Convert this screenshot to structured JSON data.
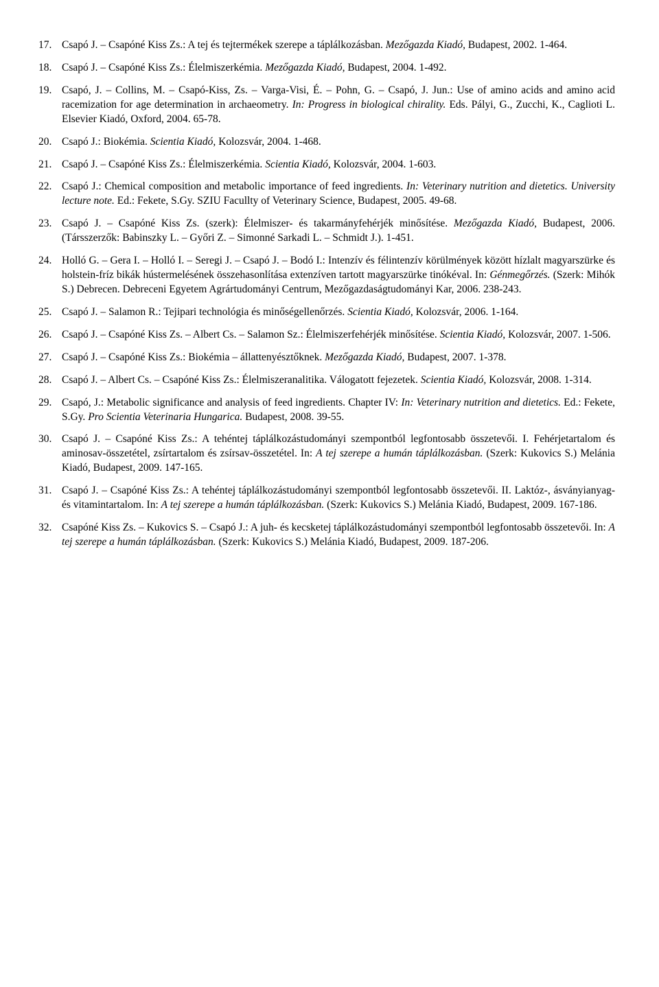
{
  "entries": [
    {
      "n": "17.",
      "parts": [
        {
          "t": "Csapó J. – Csapóné Kiss Zs.: A tej és tejtermékek szerepe a táplálkozásban. "
        },
        {
          "t": "Mezőgazda Kiadó, ",
          "i": true
        },
        {
          "t": "Budapest, 2002. 1-464."
        }
      ]
    },
    {
      "n": "18.",
      "parts": [
        {
          "t": "Csapó J. – Csapóné Kiss Zs.: Élelmiszerkémia. "
        },
        {
          "t": "Mezőgazda Kiadó, ",
          "i": true
        },
        {
          "t": "Budapest, 2004. 1-492."
        }
      ]
    },
    {
      "n": "19.",
      "parts": [
        {
          "t": "Csapó, J. – Collins, M. – Csapó-Kiss, Zs. – Varga-Visi, É. – Pohn, G. – Csapó, J. Jun.: Use of amino acids and amino acid racemization for age determination in archaeometry. "
        },
        {
          "t": "In: Progress in biological chirality. ",
          "i": true
        },
        {
          "t": "Eds. Pályi, G., Zucchi, K., Caglioti L. Elsevier Kiadó, Oxford, 2004. 65-78."
        }
      ]
    },
    {
      "n": "20.",
      "parts": [
        {
          "t": "Csapó J.: Biokémia. "
        },
        {
          "t": "Scientia Kiadó, ",
          "i": true
        },
        {
          "t": "Kolozsvár, 2004. 1-468."
        }
      ]
    },
    {
      "n": "21.",
      "parts": [
        {
          "t": "Csapó J. – Csapóné Kiss Zs.: Élelmiszerkémia. "
        },
        {
          "t": "Scientia Kiadó, ",
          "i": true
        },
        {
          "t": "Kolozsvár, 2004. 1-603."
        }
      ]
    },
    {
      "n": "22.",
      "parts": [
        {
          "t": "Csapó J.: Chemical composition and metabolic importance of feed ingredients. "
        },
        {
          "t": "In: Veterinary nutrition and dietetics. University lecture note. ",
          "i": true
        },
        {
          "t": "Ed.: Fekete, S.Gy. SZIU Facullty of Veterinary Science, Budapest, 2005. 49-68."
        }
      ]
    },
    {
      "n": "23.",
      "parts": [
        {
          "t": "Csapó J. – Csapóné Kiss Zs. (szerk): Élelmiszer- és takarmányfehérjék minősítése. "
        },
        {
          "t": "Mezőgazda Kiadó, ",
          "i": true
        },
        {
          "t": "Budapest, 2006. (Társszerzők: Babinszky L. – Győri Z. – Simonné Sarkadi L. – Schmidt J.). 1-451."
        }
      ]
    },
    {
      "n": "24.",
      "parts": [
        {
          "t": "Holló G. – Gera I. – Holló I. – Seregi J. – Csapó J. – Bodó I.: Intenzív és félintenzív körülmények között hízlalt magyarszürke és holstein-fríz bikák hústermelésének összehasonlítása extenzíven tartott magyarszürke tinókéval. In: "
        },
        {
          "t": "Génmegőrzés. ",
          "i": true
        },
        {
          "t": "(Szerk: Mihók S.) Debrecen. Debreceni Egyetem Agrártudományi Centrum, Mezőgazdaságtudományi Kar, 2006. 238-243."
        }
      ]
    },
    {
      "n": "25.",
      "parts": [
        {
          "t": "Csapó J. – Salamon R.: Tejipari technológia és minőségellenőrzés. "
        },
        {
          "t": "Scientia Kiadó, ",
          "i": true
        },
        {
          "t": "Kolozsvár, 2006. 1-164."
        }
      ]
    },
    {
      "n": "26.",
      "parts": [
        {
          "t": "Csapó J. – Csapóné Kiss Zs. – Albert Cs. – Salamon Sz.: Élelmiszerfehérjék minősítése. "
        },
        {
          "t": "Scientia Kiadó, ",
          "i": true
        },
        {
          "t": "Kolozsvár, 2007. 1-506."
        }
      ]
    },
    {
      "n": "27.",
      "parts": [
        {
          "t": "Csapó J. – Csapóné Kiss Zs.: Biokémia – állattenyésztőknek. "
        },
        {
          "t": "Mezőgazda Kiadó, ",
          "i": true
        },
        {
          "t": "Budapest, 2007. 1-378."
        }
      ]
    },
    {
      "n": "28.",
      "parts": [
        {
          "t": "Csapó J. – Albert Cs. – Csapóné Kiss Zs.: Élelmiszeranalitika. Válogatott fejezetek. "
        },
        {
          "t": "Scientia Kiadó, ",
          "i": true
        },
        {
          "t": "Kolozsvár, 2008. 1-314."
        }
      ]
    },
    {
      "n": "29.",
      "parts": [
        {
          "t": "Csapó, J.: Metabolic significance and analysis of feed ingredients. Chapter IV: "
        },
        {
          "t": "In: Veterinary nutrition and dietetics. ",
          "i": true
        },
        {
          "t": "Ed.: Fekete, S.Gy. "
        },
        {
          "t": "Pro Scientia Veterinaria Hungarica. ",
          "i": true
        },
        {
          "t": "Budapest, 2008. 39-55."
        }
      ]
    },
    {
      "n": "30.",
      "parts": [
        {
          "t": "Csapó J. – Csapóné Kiss Zs.: A tehéntej táplálkozástudományi szempontból legfontosabb összetevői. I. Fehérjetartalom és aminosav-összetétel, zsírtartalom és zsírsav-összetétel. In: "
        },
        {
          "t": "A tej szerepe a humán táplálkozásban. ",
          "i": true
        },
        {
          "t": "(Szerk: Kukovics S.) Melánia Kiadó, Budapest, 2009. 147-165."
        }
      ]
    },
    {
      "n": "31.",
      "parts": [
        {
          "t": "Csapó J. – Csapóné Kiss Zs.: A tehéntej táplálkozástudományi szempontból legfontosabb összetevői. II. Laktóz-, ásványianyag- és vitamintartalom. In: "
        },
        {
          "t": "A tej szerepe a humán táplálkozásban. ",
          "i": true
        },
        {
          "t": "(Szerk: Kukovics S.) Melánia Kiadó, Budapest, 2009. 167-186."
        }
      ]
    },
    {
      "n": "32.",
      "parts": [
        {
          "t": "Csapóné Kiss Zs. – Kukovics S. – Csapó J.: A juh- és kecsketej táplálkozástudományi szempontból legfontosabb összetevői. In: "
        },
        {
          "t": "A tej szerepe a humán táplálkozásban. ",
          "i": true
        },
        {
          "t": "(Szerk: Kukovics S.) Melánia Kiadó, Budapest, 2009. 187-206."
        }
      ]
    }
  ]
}
